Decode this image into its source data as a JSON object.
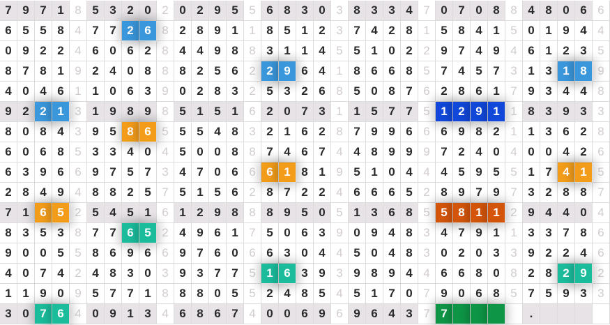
{
  "grid": {
    "rows": [
      "79718532020295568303833470708848066",
      "65584772682891185123742815841501944",
      "09224606284498831145510229749461235",
      "87819240888256229641866857457313189",
      "40461106390283253268508762861793448",
      "92213198985151620731157751291183933",
      "80843958655548321628799666982113628",
      "60685334045008874674489997240400426",
      "63966975734706661819510444595517415",
      "28494882575156287224666528979732887",
      "71652545161298889505136855811294404",
      "83538776524961750639094834791133786",
      "90055869669760663044504830203392246",
      "40742483039377516393989446680828292",
      "11909577188805524854517079068575933",
      "30764091346867400696964377    .    ."
    ],
    "shaded_rows": [
      0,
      5,
      10,
      15
    ],
    "highlights": [
      {
        "row": 1,
        "group": 2,
        "cells": [
          2,
          3
        ],
        "color": "#3a97db"
      },
      {
        "row": 3,
        "group": 4,
        "cells": [
          0,
          1
        ],
        "color": "#3a97db"
      },
      {
        "row": 3,
        "group": 7,
        "cells": [
          2,
          3
        ],
        "color": "#3a97db"
      },
      {
        "row": 5,
        "group": 1,
        "cells": [
          2,
          3
        ],
        "color": "#3a97db"
      },
      {
        "row": 5,
        "group": 6,
        "cells": [
          0,
          1,
          2,
          3
        ],
        "color": "#1148d9"
      },
      {
        "row": 6,
        "group": 2,
        "cells": [
          2,
          3
        ],
        "color": "#f29c1a"
      },
      {
        "row": 8,
        "group": 4,
        "cells": [
          0,
          1
        ],
        "color": "#f29c1a"
      },
      {
        "row": 8,
        "group": 7,
        "cells": [
          2,
          3
        ],
        "color": "#f29c1a"
      },
      {
        "row": 10,
        "group": 1,
        "cells": [
          2,
          3
        ],
        "color": "#f29c1a"
      },
      {
        "row": 10,
        "group": 6,
        "cells": [
          0,
          1,
          2,
          3
        ],
        "color": "#d3550a"
      },
      {
        "row": 11,
        "group": 2,
        "cells": [
          2,
          3
        ],
        "color": "#1abc9c"
      },
      {
        "row": 13,
        "group": 4,
        "cells": [
          0,
          1
        ],
        "color": "#1abc9c"
      },
      {
        "row": 13,
        "group": 7,
        "cells": [
          2,
          3
        ],
        "color": "#1abc9c"
      },
      {
        "row": 15,
        "group": 1,
        "cells": [
          2,
          3
        ],
        "color": "#1abc9c"
      },
      {
        "row": 15,
        "group": 6,
        "cells": [
          0,
          1,
          2,
          3
        ],
        "color": "#0e9646"
      }
    ]
  }
}
